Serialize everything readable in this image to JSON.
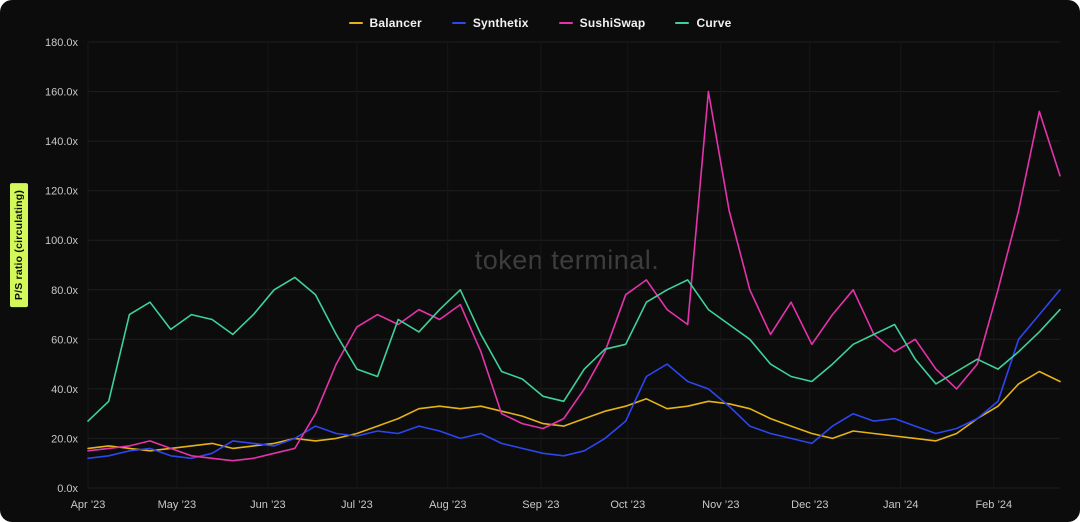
{
  "panel": {
    "watermark": "token terminal.",
    "y_axis_title": "P/S ratio (circulating)",
    "background_color": "#0c0c0d",
    "axis_badge_color": "#d3f85a",
    "grid_color": "#1e1e1e",
    "tick_label_color": "#c8c8c8"
  },
  "chart_data": {
    "type": "line",
    "title": "",
    "xlabel": "",
    "ylabel": "P/S ratio (circulating)",
    "ylim": [
      0,
      180
    ],
    "grid": true,
    "legend_position": "top-center",
    "y_ticks": [
      0,
      20,
      40,
      60,
      80,
      100,
      120,
      140,
      160,
      180
    ],
    "y_tick_labels": [
      "0.0x",
      "20.0x",
      "40.0x",
      "60.0x",
      "80.0x",
      "100.0x",
      "120.0x",
      "140.0x",
      "160.0x",
      "180.0x"
    ],
    "x_tick_labels": [
      "Apr ’23",
      "May ’23",
      "Jun ’23",
      "Jul ’23",
      "Aug ’23",
      "Sep ’23",
      "Oct ’23",
      "Nov ’23",
      "Dec ’23",
      "Jan ’24",
      "Feb ’24"
    ],
    "x_tick_weeks": [
      0,
      4.3,
      8.7,
      13,
      17.4,
      21.9,
      26.1,
      30.6,
      34.9,
      39.3,
      43.8
    ],
    "x_unit": "weekly samples, Apr 2023 to late Feb 2024",
    "series": [
      {
        "name": "Balancer",
        "color": "#e5b318",
        "values": [
          16,
          17,
          16,
          15,
          16,
          17,
          18,
          16,
          17,
          18,
          20,
          19,
          20,
          22,
          25,
          28,
          32,
          33,
          32,
          33,
          31,
          29,
          26,
          25,
          28,
          31,
          33,
          36,
          32,
          33,
          35,
          34,
          32,
          28,
          25,
          22,
          20,
          23,
          22,
          21,
          20,
          19,
          22,
          28,
          33,
          42,
          47,
          43
        ]
      },
      {
        "name": "Synthetix",
        "color": "#2d46ee",
        "values": [
          12,
          13,
          15,
          16,
          13,
          12,
          14,
          19,
          18,
          17,
          20,
          25,
          22,
          21,
          23,
          22,
          25,
          23,
          20,
          22,
          18,
          16,
          14,
          13,
          15,
          20,
          27,
          45,
          50,
          43,
          40,
          33,
          25,
          22,
          20,
          18,
          25,
          30,
          27,
          28,
          25,
          22,
          24,
          28,
          35,
          60,
          70,
          80
        ]
      },
      {
        "name": "SushiSwap",
        "color": "#e533ab",
        "values": [
          15,
          16,
          17,
          19,
          16,
          13,
          12,
          11,
          12,
          14,
          16,
          30,
          50,
          65,
          70,
          66,
          72,
          68,
          74,
          55,
          30,
          26,
          24,
          28,
          40,
          55,
          78,
          84,
          72,
          66,
          160,
          112,
          80,
          62,
          75,
          58,
          70,
          80,
          62,
          55,
          60,
          48,
          40,
          50,
          80,
          112,
          152,
          126
        ]
      },
      {
        "name": "Curve",
        "color": "#3fd199",
        "values": [
          27,
          35,
          70,
          75,
          64,
          70,
          68,
          62,
          70,
          80,
          85,
          78,
          62,
          48,
          45,
          68,
          63,
          72,
          80,
          62,
          47,
          44,
          37,
          35,
          48,
          56,
          58,
          75,
          80,
          84,
          72,
          66,
          60,
          50,
          45,
          43,
          50,
          58,
          62,
          66,
          52,
          42,
          47,
          52,
          48,
          55,
          63,
          72
        ]
      }
    ]
  }
}
